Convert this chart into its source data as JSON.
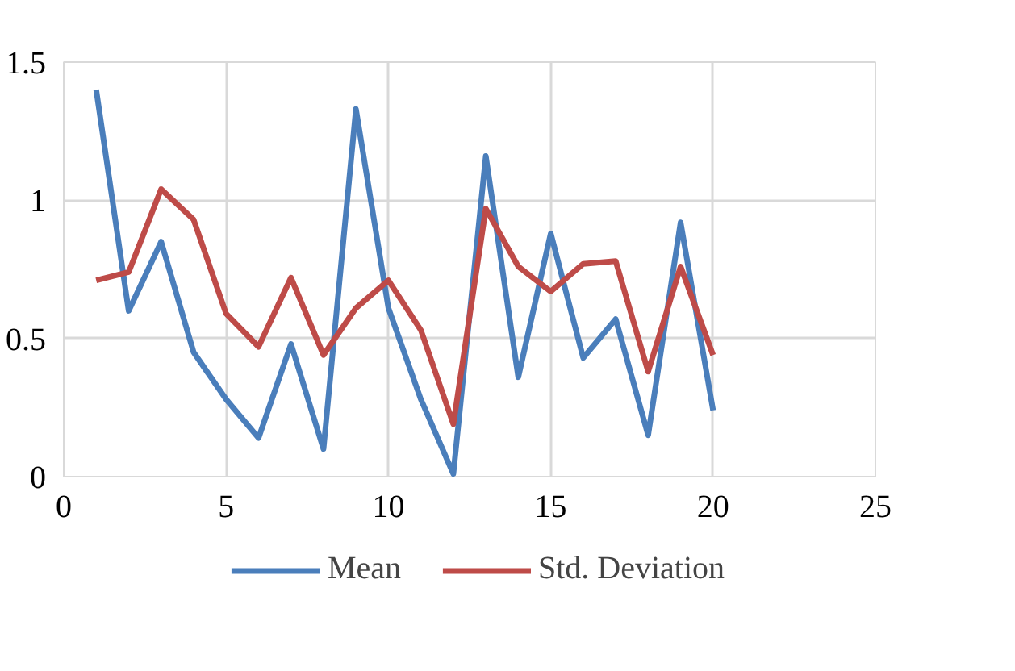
{
  "chart_data": {
    "type": "line",
    "x": [
      1,
      2,
      3,
      4,
      5,
      6,
      7,
      8,
      9,
      10,
      11,
      12,
      13,
      14,
      15,
      16,
      17,
      18,
      19,
      20
    ],
    "series": [
      {
        "name": "Mean",
        "color": "#4a7ebb",
        "values": [
          1.4,
          0.6,
          0.85,
          0.45,
          0.28,
          0.14,
          0.48,
          0.1,
          1.33,
          0.61,
          0.28,
          0.01,
          1.16,
          0.36,
          0.88,
          0.43,
          0.57,
          0.15,
          0.92,
          0.24
        ]
      },
      {
        "name": "Std. Deviation",
        "color": "#be4b48",
        "values": [
          0.71,
          0.74,
          1.04,
          0.93,
          0.59,
          0.47,
          0.72,
          0.44,
          0.61,
          0.71,
          0.53,
          0.19,
          0.97,
          0.76,
          0.67,
          0.77,
          0.78,
          0.38,
          0.76,
          0.44
        ]
      }
    ],
    "xlim": [
      0,
      25
    ],
    "xticks": [
      0,
      5,
      10,
      15,
      20,
      25
    ],
    "ylim": [
      0,
      1.5
    ],
    "yticks": [
      0,
      0.5,
      1,
      1.5
    ],
    "grid": true,
    "legend": "bottom",
    "marker": "none",
    "line_style": "solid"
  }
}
